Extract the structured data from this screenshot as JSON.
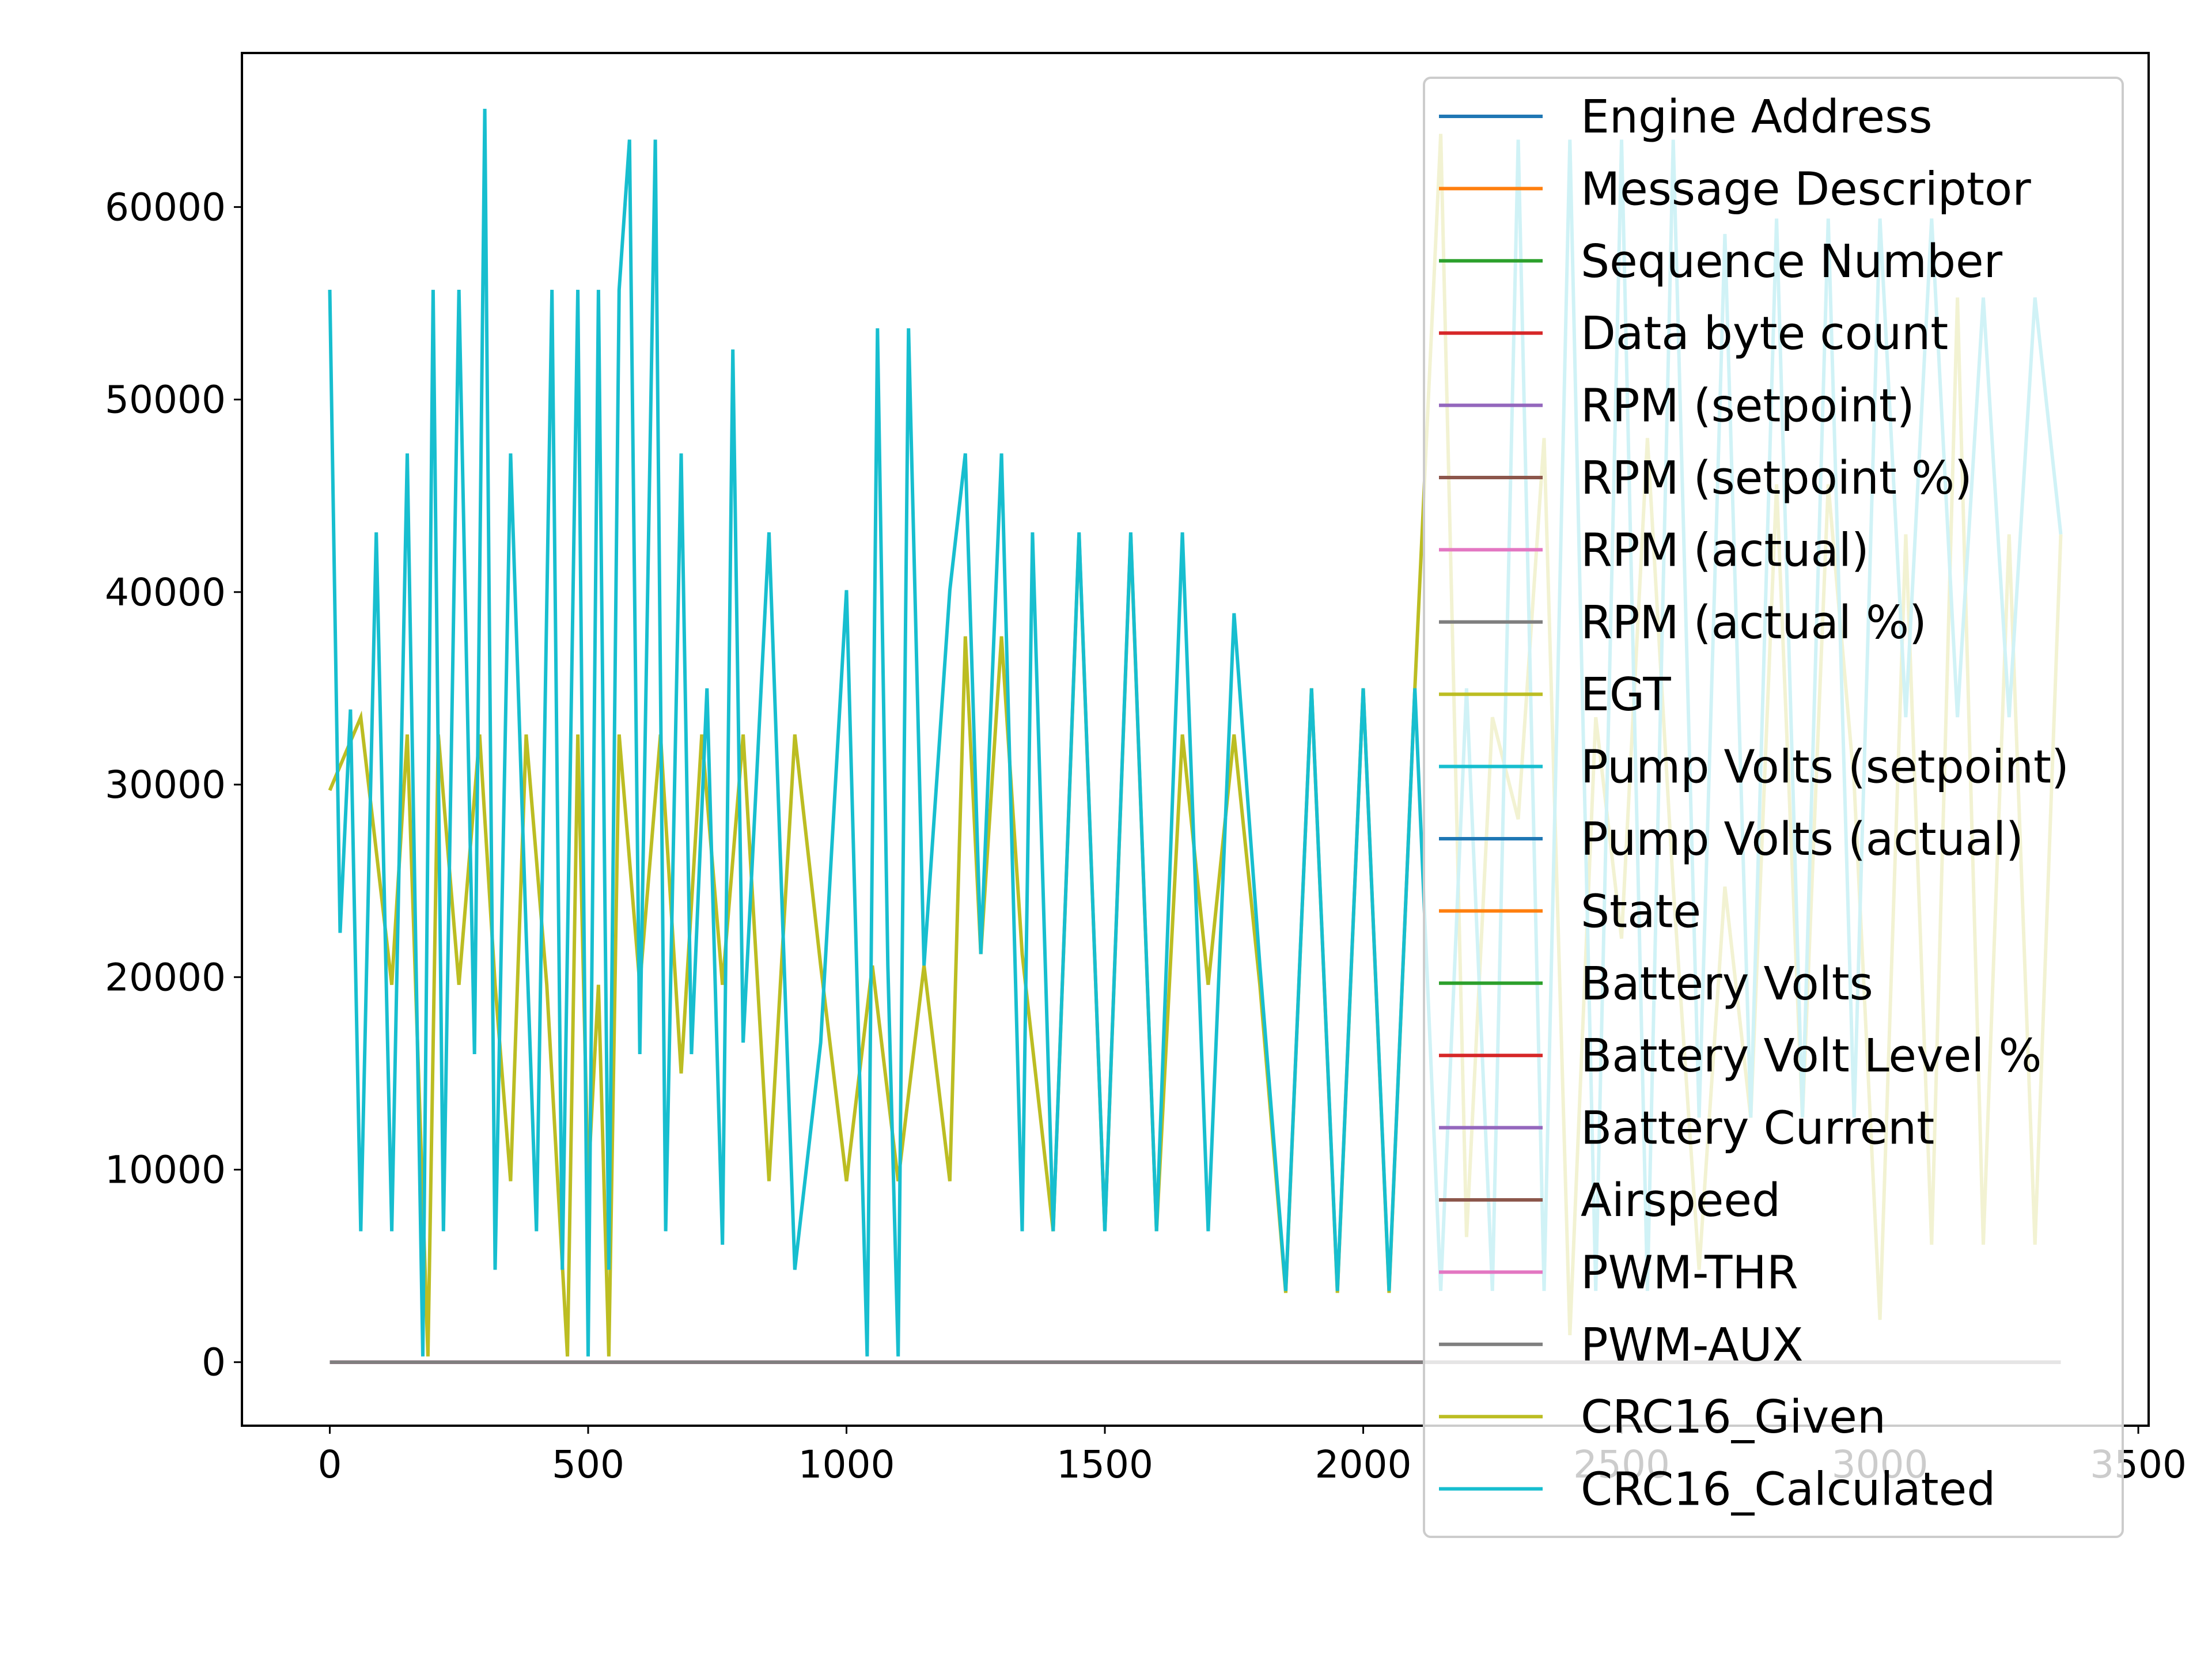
{
  "chart_data": {
    "type": "line",
    "title": "",
    "xlabel": "",
    "ylabel": "",
    "xlim": [
      -170,
      3520
    ],
    "ylim": [
      -3300,
      68000
    ],
    "grid": false,
    "legend_position": "upper-right",
    "x_ticks": [
      {
        "value": 0,
        "label": "0"
      },
      {
        "value": 500,
        "label": "500"
      },
      {
        "value": 1000,
        "label": "1000"
      },
      {
        "value": 1500,
        "label": "1500"
      },
      {
        "value": 2000,
        "label": "2000"
      },
      {
        "value": 2500,
        "label": "2500"
      },
      {
        "value": 3000,
        "label": "3000"
      },
      {
        "value": 3500,
        "label": "3500"
      }
    ],
    "y_ticks": [
      {
        "value": 0,
        "label": "0"
      },
      {
        "value": 10000,
        "label": "10000"
      },
      {
        "value": 20000,
        "label": "20000"
      },
      {
        "value": 30000,
        "label": "30000"
      },
      {
        "value": 40000,
        "label": "40000"
      },
      {
        "value": 50000,
        "label": "50000"
      },
      {
        "value": 60000,
        "label": "60000"
      }
    ],
    "series": [
      {
        "name": "Engine Address",
        "color": "#1f77b4",
        "x": [
          0,
          3350
        ],
        "y": [
          0,
          0
        ]
      },
      {
        "name": "Message Descriptor",
        "color": "#ff7f0e",
        "x": [
          0,
          3350
        ],
        "y": [
          0,
          0
        ]
      },
      {
        "name": "Sequence Number",
        "color": "#2ca02c",
        "x": [
          0,
          3350
        ],
        "y": [
          0,
          0
        ]
      },
      {
        "name": "Data byte count",
        "color": "#d62728",
        "x": [
          0,
          3350
        ],
        "y": [
          0,
          0
        ]
      },
      {
        "name": "RPM (setpoint)",
        "color": "#9467bd",
        "x": [
          0,
          3350
        ],
        "y": [
          0,
          0
        ]
      },
      {
        "name": "RPM (setpoint %)",
        "color": "#8c564b",
        "x": [
          0,
          3350
        ],
        "y": [
          0,
          0
        ]
      },
      {
        "name": "RPM (actual)",
        "color": "#e377c2",
        "x": [
          0,
          3350
        ],
        "y": [
          0,
          0
        ]
      },
      {
        "name": "RPM (actual %)",
        "color": "#7f7f7f",
        "x": [
          0,
          3350
        ],
        "y": [
          0,
          0
        ]
      },
      {
        "name": "EGT",
        "color": "#bcbd22",
        "x": [
          0,
          3350
        ],
        "y": [
          0,
          0
        ]
      },
      {
        "name": "Pump Volts (setpoint)",
        "color": "#17becf",
        "x": [
          0,
          3350
        ],
        "y": [
          0,
          0
        ]
      },
      {
        "name": "Pump Volts (actual)",
        "color": "#1f77b4",
        "x": [
          0,
          3350
        ],
        "y": [
          0,
          0
        ]
      },
      {
        "name": "State",
        "color": "#ff7f0e",
        "x": [
          0,
          3350
        ],
        "y": [
          0,
          0
        ]
      },
      {
        "name": "Battery Volts",
        "color": "#2ca02c",
        "x": [
          0,
          3350
        ],
        "y": [
          0,
          0
        ]
      },
      {
        "name": "Battery Volt Level %",
        "color": "#d62728",
        "x": [
          0,
          3350
        ],
        "y": [
          0,
          0
        ]
      },
      {
        "name": "Battery Current",
        "color": "#9467bd",
        "x": [
          0,
          3350
        ],
        "y": [
          0,
          0
        ]
      },
      {
        "name": "Airspeed",
        "color": "#8c564b",
        "x": [
          0,
          3350
        ],
        "y": [
          0,
          0
        ]
      },
      {
        "name": "PWM-THR",
        "color": "#e377c2",
        "x": [
          0,
          3350
        ],
        "y": [
          0,
          0
        ]
      },
      {
        "name": "PWM-AUX",
        "color": "#7f7f7f",
        "x": [
          0,
          3350
        ],
        "y": [
          0,
          0
        ]
      },
      {
        "name": "CRC16_Given",
        "color": "#bcbd22",
        "x": [
          0,
          60,
          120,
          150,
          190,
          210,
          250,
          290,
          320,
          350,
          380,
          420,
          460,
          480,
          500,
          520,
          540,
          560,
          600,
          640,
          680,
          720,
          760,
          800,
          850,
          900,
          950,
          1000,
          1050,
          1100,
          1150,
          1200,
          1230,
          1260,
          1300,
          1340,
          1400,
          1450,
          1500,
          1550,
          1600,
          1650,
          1700,
          1750,
          1800,
          1850,
          1900,
          1950,
          2000,
          2050,
          2100,
          2150,
          2200,
          2250,
          2300,
          2350,
          2400,
          2450,
          2500,
          2550,
          2600,
          2650,
          2700,
          2750,
          2800,
          2850,
          2900,
          2950,
          3000,
          3050,
          3100,
          3150,
          3200,
          3250,
          3300,
          3350
        ],
        "y": [
          29700,
          33500,
          19600,
          32600,
          300,
          32600,
          19600,
          32600,
          19600,
          9400,
          32600,
          19600,
          300,
          32600,
          9400,
          19600,
          300,
          32600,
          19600,
          32600,
          15000,
          32600,
          19600,
          32600,
          9400,
          32600,
          20600,
          9400,
          20600,
          9400,
          20600,
          9400,
          37700,
          21200,
          37700,
          21200,
          6800,
          43000,
          6800,
          43000,
          6800,
          32600,
          19600,
          32600,
          19600,
          3600,
          35000,
          3600,
          35000,
          3600,
          35000,
          63800,
          6500,
          33500,
          28200,
          48000,
          1400,
          33500,
          22000,
          48000,
          24700,
          4800,
          24700,
          12700,
          45600,
          12700,
          45600,
          30100,
          2200,
          43000,
          6100,
          55300,
          6100,
          43000,
          6100,
          43000
        ]
      },
      {
        "name": "CRC16_Calculated",
        "color": "#17becf",
        "x": [
          0,
          20,
          40,
          60,
          90,
          120,
          150,
          180,
          200,
          220,
          250,
          280,
          300,
          320,
          350,
          380,
          400,
          430,
          450,
          480,
          500,
          520,
          540,
          560,
          580,
          600,
          630,
          650,
          680,
          700,
          730,
          760,
          780,
          800,
          850,
          900,
          950,
          1000,
          1040,
          1060,
          1080,
          1100,
          1120,
          1150,
          1200,
          1230,
          1260,
          1300,
          1340,
          1360,
          1400,
          1450,
          1500,
          1550,
          1600,
          1650,
          1700,
          1750,
          1800,
          1850,
          1900,
          1950,
          2000,
          2050,
          2100,
          2150,
          2200,
          2250,
          2300,
          2350,
          2400,
          2450,
          2500,
          2550,
          2600,
          2650,
          2700,
          2750,
          2800,
          2850,
          2900,
          2950,
          3000,
          3050,
          3100,
          3150,
          3200,
          3250,
          3300,
          3350
        ],
        "y": [
          55700,
          22300,
          33900,
          6800,
          43100,
          6800,
          47200,
          300,
          55700,
          6800,
          55700,
          16000,
          65100,
          4800,
          47200,
          22300,
          6800,
          55700,
          4800,
          55700,
          300,
          55700,
          4800,
          55700,
          63500,
          16000,
          63500,
          6800,
          47200,
          16000,
          35000,
          6100,
          52600,
          16600,
          43100,
          4800,
          16600,
          40100,
          300,
          53700,
          20600,
          300,
          53700,
          20600,
          40100,
          47200,
          21200,
          47200,
          6800,
          43100,
          6800,
          43100,
          6800,
          43100,
          6800,
          43100,
          6800,
          38900,
          20600,
          3700,
          35000,
          3700,
          35000,
          3700,
          35000,
          3700,
          35000,
          3700,
          63500,
          3700,
          63500,
          3700,
          63500,
          3700,
          63500,
          12700,
          58600,
          12700,
          59400,
          12700,
          59400,
          12700,
          59400,
          33500,
          59400,
          33500,
          55300,
          33500,
          55300,
          43000
        ]
      }
    ]
  }
}
